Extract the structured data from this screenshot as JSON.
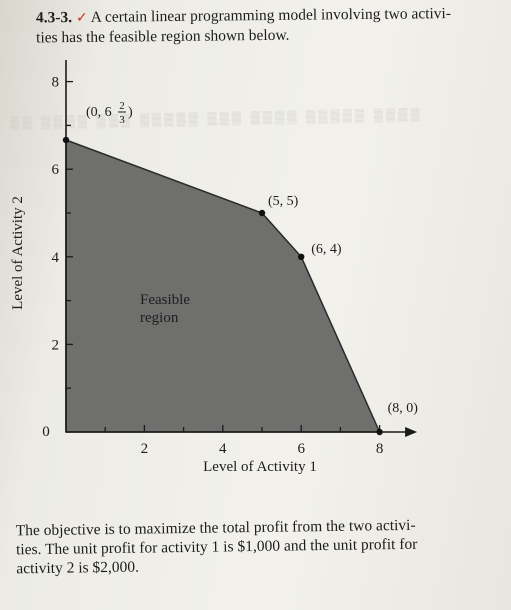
{
  "problem": {
    "number": "4.3-3.",
    "text_line1": "A certain linear programming model involving two activi-",
    "text_line2": "ties has the feasible region shown below."
  },
  "chart_data": {
    "type": "area",
    "xlabel": "Level of Activity 1",
    "ylabel": "Level of Activity 2",
    "xlim": [
      0,
      8.6
    ],
    "ylim": [
      0,
      8.6
    ],
    "x_ticks": [
      2,
      4,
      6,
      8
    ],
    "y_ticks": [
      2,
      4,
      6,
      8
    ],
    "origin_label": "0",
    "region_label_line1": "Feasible",
    "region_label_line2": "region",
    "region_vertices": [
      [
        0,
        0
      ],
      [
        0,
        6.6667
      ],
      [
        5,
        5
      ],
      [
        6,
        4
      ],
      [
        8,
        0
      ]
    ],
    "labeled_points": [
      {
        "x": 0,
        "y": 6.6667,
        "label_prefix": "(0, 6",
        "frac_num": "2",
        "frac_den": "3",
        "label_suffix": ")"
      },
      {
        "x": 5,
        "y": 5,
        "label": "(5, 5)"
      },
      {
        "x": 6,
        "y": 4,
        "label": "(6, 4)"
      },
      {
        "x": 8,
        "y": 0,
        "label": "(8, 0)"
      }
    ],
    "colors": {
      "region": "#6f6f6e",
      "axis": "#1a1a1a"
    }
  },
  "note": {
    "line1": "The objective is to maximize the total profit from the two activi-",
    "line2": "ties. The unit profit for activity 1 is $1,000 and the unit profit for",
    "line3": "activity 2 is $2,000."
  }
}
